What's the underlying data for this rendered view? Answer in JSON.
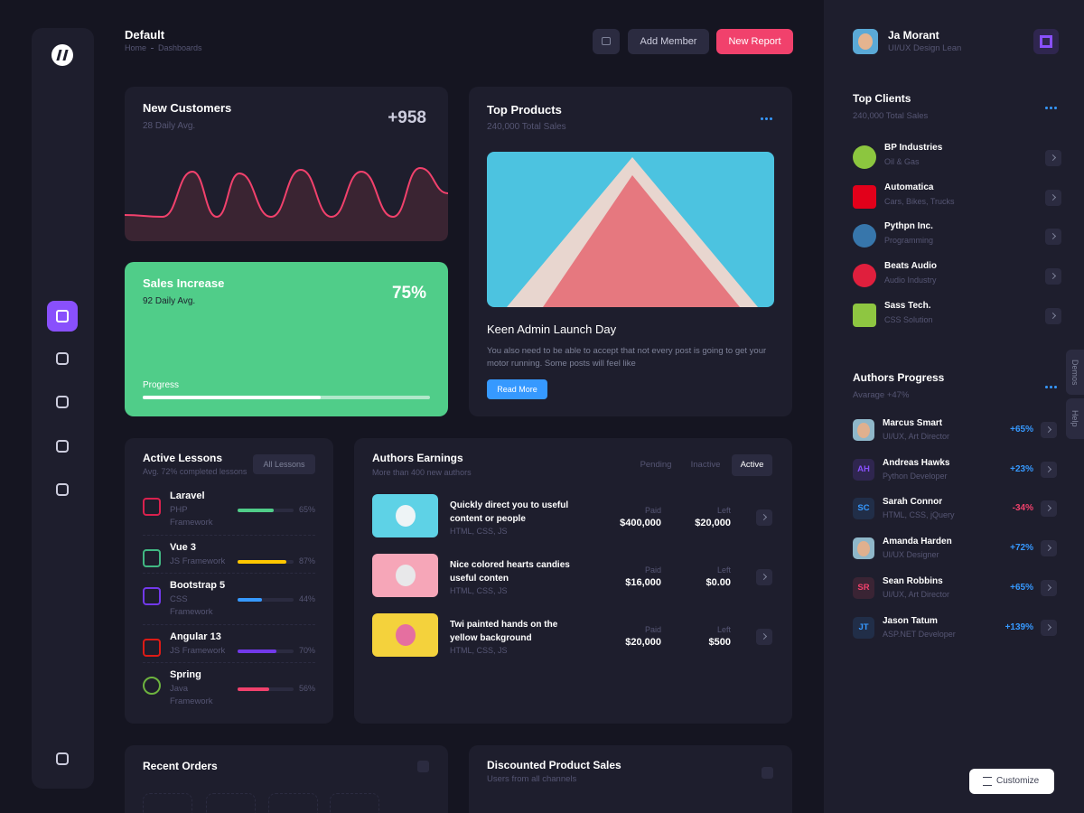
{
  "header": {
    "title": "Default",
    "breadcrumb_home": "Home",
    "breadcrumb_page": "Dashboards",
    "add_member": "Add Member",
    "new_report": "New Report"
  },
  "profile": {
    "name": "Ja Morant",
    "role": "UI/UX Design Lean"
  },
  "new_customers": {
    "title": "New Customers",
    "subtitle": "28 Daily Avg.",
    "value": "+958"
  },
  "sales_increase": {
    "title": "Sales Increase",
    "subtitle": "92 Daily Avg.",
    "value": "75%",
    "progress_label": "Progress",
    "progress": 62
  },
  "top_products": {
    "title": "Top Products",
    "subtitle": "240,000 Total Sales",
    "post_title": "Keen Admin Launch Day",
    "post_text": "You also need to be able to accept that not every post is going to get your motor running. Some posts will feel like",
    "button": "Read More"
  },
  "active_lessons": {
    "title": "Active Lessons",
    "subtitle": "Avg. 72% completed lessons",
    "button": "All Lessons",
    "items": [
      {
        "name": "Laravel",
        "tag": "PHP Framework",
        "percent": {
          "value": 65,
          "label": "65%"
        }
      },
      {
        "name": "Vue 3",
        "tag": "JS Framework",
        "percent": {
          "value": 87,
          "label": "87%"
        }
      },
      {
        "name": "Bootstrap 5",
        "tag": "CSS Framework",
        "percent": {
          "value": 44,
          "label": "44%"
        }
      },
      {
        "name": "Angular 13",
        "tag": "JS Framework",
        "percent": {
          "value": 70,
          "label": "70%"
        }
      },
      {
        "name": "Spring",
        "tag": "Java Framework",
        "percent": {
          "value": 56,
          "label": "56%"
        }
      }
    ]
  },
  "authors_earnings": {
    "title": "Authors Earnings",
    "subtitle": "More than 400 new authors",
    "tabs": [
      "Pending",
      "Inactive",
      "Active"
    ],
    "paid_label": "Paid",
    "left_label": "Left",
    "rows": [
      {
        "title": "Quickly direct you to useful content or people",
        "tags": "HTML, CSS, JS",
        "paid": "$400,000",
        "left": "$20,000"
      },
      {
        "title": "Nice colored hearts candies useful conten",
        "tags": "HTML, CSS, JS",
        "paid": "$16,000",
        "left": "$0.00"
      },
      {
        "title": "Twi painted hands on the yellow background",
        "tags": "HTML, CSS, JS",
        "paid": "$20,000",
        "left": "$500"
      }
    ]
  },
  "recent_orders": {
    "title": "Recent Orders"
  },
  "discounted_sales": {
    "title": "Discounted Product Sales",
    "subtitle": "Users from all channels"
  },
  "top_clients": {
    "title": "Top Clients",
    "subtitle": "240,000 Total Sales",
    "items": [
      {
        "name": "BP Industries",
        "sub": "Oil & Gas"
      },
      {
        "name": "Automatica",
        "sub": "Cars, Bikes, Trucks"
      },
      {
        "name": "Pythpn Inc.",
        "sub": "Programming"
      },
      {
        "name": "Beats Audio",
        "sub": "Audio Industry"
      },
      {
        "name": "Sass Tech.",
        "sub": "CSS Solution"
      }
    ]
  },
  "authors_progress": {
    "title": "Authors Progress",
    "subtitle": "Avarage +47%",
    "items": [
      {
        "name": "Marcus Smart",
        "role": "UI/UX, Art Director",
        "change": "+65%"
      },
      {
        "name": "Andreas Hawks",
        "role": "Python Developer",
        "change": "+23%",
        "initials": "AH"
      },
      {
        "name": "Sarah Connor",
        "role": "HTML, CSS, jQuery",
        "change": "-34%",
        "initials": "SC"
      },
      {
        "name": "Amanda Harden",
        "role": "UI/UX Designer",
        "change": "+72%"
      },
      {
        "name": "Sean Robbins",
        "role": "UI/UX, Art Director",
        "change": "+65%",
        "initials": "SR"
      },
      {
        "name": "Jason Tatum",
        "role": "ASP.NET Developer",
        "change": "+139%",
        "initials": "JT"
      }
    ]
  },
  "side_tabs": [
    "Demos",
    "Help"
  ],
  "customize": "Customize"
}
